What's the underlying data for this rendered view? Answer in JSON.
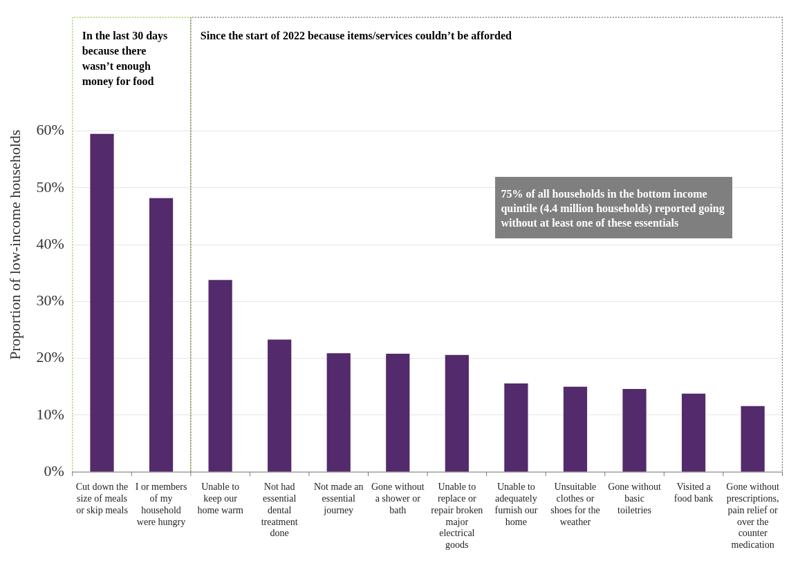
{
  "chart_data": {
    "type": "bar",
    "ylabel": "Proportion of low-income households",
    "categories": [
      "Cut down the size of meals or skip meals",
      "I or members of my household were hungry",
      "Unable to keep our home warm",
      "Not had essential dental treatment done",
      "Not made an essential journey",
      "Gone without a shower or bath",
      "Unable to replace or repair broken major electrical goods",
      "Unable to adequately furnish our home",
      "Unsuitable clothes or shoes for the weather",
      "Gone without basic toiletries",
      "Visited a food bank",
      "Gone without prescriptions, pain relief or over the counter medication"
    ],
    "values": [
      59.5,
      48.2,
      33.8,
      23.3,
      20.9,
      20.8,
      20.6,
      15.6,
      15.0,
      14.6,
      13.8,
      11.6
    ],
    "color": "#532a6b",
    "ylim": [
      0,
      80
    ],
    "yticks": [
      {
        "value": 0,
        "label": "0%"
      },
      {
        "value": 10,
        "label": "10%"
      },
      {
        "value": 20,
        "label": "20%"
      },
      {
        "value": 30,
        "label": "30%"
      },
      {
        "value": 40,
        "label": "40%"
      },
      {
        "value": 50,
        "label": "50%"
      },
      {
        "value": 60,
        "label": "60%"
      }
    ],
    "grid": "y",
    "legend": false,
    "annotations": [
      "In the last 30 days because there wasn’t enough money for food",
      "Since the start of 2022 because items/services couldn’t be afforded",
      "75% of all households in the bottom income quintile (4.4 million households) reported going without at least one of these essentials"
    ]
  }
}
